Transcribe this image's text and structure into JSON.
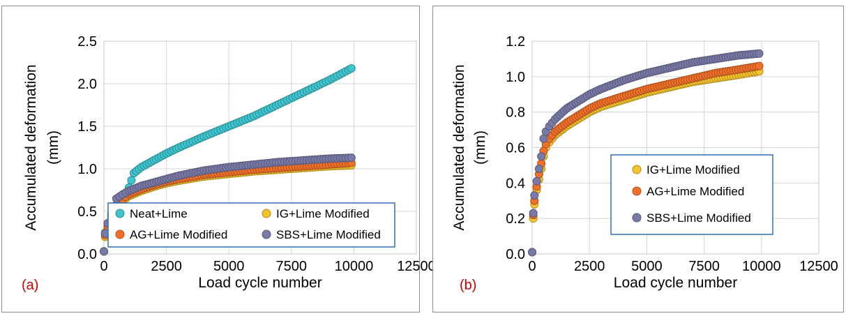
{
  "chart_data": [
    {
      "type": "scatter",
      "panel_label": "(a)",
      "xlabel": "Load cycle number",
      "ylabel_line1": "Accumulated deformation",
      "ylabel_line2": "(mm)",
      "xlim": [
        0,
        12500
      ],
      "ylim": [
        0,
        2.5
      ],
      "xticks": [
        "0",
        "2500",
        "5000",
        "7500",
        "10000",
        "12500"
      ],
      "yticks": [
        "0.0",
        "0.5",
        "1.0",
        "1.5",
        "2.0",
        "2.5"
      ],
      "grid": true,
      "legend_position": "bottom-right",
      "series": [
        {
          "name": "Neat+Lime",
          "color": "#3fc5cf",
          "points": [
            [
              0,
              0.03
            ],
            [
              50,
              0.25
            ],
            [
              150,
              0.36
            ],
            [
              300,
              0.45
            ],
            [
              500,
              0.55
            ],
            [
              750,
              0.66
            ],
            [
              1000,
              0.78
            ],
            [
              1200,
              0.95
            ],
            [
              1500,
              1.02
            ],
            [
              2000,
              1.1
            ],
            [
              2500,
              1.18
            ],
            [
              3000,
              1.25
            ],
            [
              4000,
              1.38
            ],
            [
              5000,
              1.5
            ],
            [
              6000,
              1.62
            ],
            [
              7000,
              1.76
            ],
            [
              8000,
              1.9
            ],
            [
              9000,
              2.04
            ],
            [
              9900,
              2.18
            ]
          ]
        },
        {
          "name": "IG+Lime Modified",
          "color": "#f5c42c",
          "points": [
            [
              0,
              0.03
            ],
            [
              50,
              0.2
            ],
            [
              150,
              0.3
            ],
            [
              300,
              0.4
            ],
            [
              500,
              0.53
            ],
            [
              750,
              0.62
            ],
            [
              1000,
              0.68
            ],
            [
              1500,
              0.74
            ],
            [
              2000,
              0.79
            ],
            [
              2500,
              0.83
            ],
            [
              3000,
              0.86
            ],
            [
              4000,
              0.91
            ],
            [
              5000,
              0.94
            ],
            [
              6000,
              0.97
            ],
            [
              7000,
              0.99
            ],
            [
              8000,
              1.01
            ],
            [
              9000,
              1.03
            ],
            [
              9900,
              1.04
            ]
          ]
        },
        {
          "name": "AG+Lime Modified",
          "color": "#f0702a",
          "points": [
            [
              0,
              0.03
            ],
            [
              50,
              0.22
            ],
            [
              150,
              0.32
            ],
            [
              300,
              0.42
            ],
            [
              500,
              0.56
            ],
            [
              750,
              0.64
            ],
            [
              1000,
              0.7
            ],
            [
              1500,
              0.76
            ],
            [
              2000,
              0.81
            ],
            [
              2500,
              0.85
            ],
            [
              3000,
              0.88
            ],
            [
              4000,
              0.93
            ],
            [
              5000,
              0.96
            ],
            [
              6000,
              0.99
            ],
            [
              7000,
              1.01
            ],
            [
              8000,
              1.03
            ],
            [
              9000,
              1.05
            ],
            [
              9900,
              1.07
            ]
          ]
        },
        {
          "name": "SBS+Lime Modified",
          "color": "#7a7aa8",
          "points": [
            [
              0,
              0.03
            ],
            [
              50,
              0.24
            ],
            [
              150,
              0.36
            ],
            [
              300,
              0.47
            ],
            [
              500,
              0.65
            ],
            [
              750,
              0.7
            ],
            [
              1000,
              0.74
            ],
            [
              1500,
              0.8
            ],
            [
              2000,
              0.84
            ],
            [
              2500,
              0.88
            ],
            [
              3000,
              0.92
            ],
            [
              4000,
              0.98
            ],
            [
              5000,
              1.02
            ],
            [
              6000,
              1.05
            ],
            [
              7000,
              1.08
            ],
            [
              8000,
              1.1
            ],
            [
              9000,
              1.12
            ],
            [
              9900,
              1.13
            ]
          ]
        }
      ]
    },
    {
      "type": "scatter",
      "panel_label": "(b)",
      "xlabel": "Load cycle number",
      "ylabel_line1": "Accumulated deformation",
      "ylabel_line2": "(mm)",
      "xlim": [
        0,
        12500
      ],
      "ylim": [
        0,
        1.2
      ],
      "xticks": [
        "0",
        "2500",
        "5000",
        "7500",
        "10000",
        "12500"
      ],
      "yticks": [
        "0.0",
        "0.2",
        "0.4",
        "0.6",
        "0.8",
        "1.0",
        "1.2"
      ],
      "grid": true,
      "legend_position": "center-right",
      "series": [
        {
          "name": "IG+Lime Modified",
          "color": "#f5c42c",
          "points": [
            [
              0,
              0.01
            ],
            [
              50,
              0.2
            ],
            [
              100,
              0.28
            ],
            [
              200,
              0.36
            ],
            [
              300,
              0.42
            ],
            [
              400,
              0.48
            ],
            [
              500,
              0.55
            ],
            [
              600,
              0.6
            ],
            [
              750,
              0.63
            ],
            [
              1000,
              0.67
            ],
            [
              1500,
              0.72
            ],
            [
              2000,
              0.76
            ],
            [
              2500,
              0.8
            ],
            [
              3000,
              0.83
            ],
            [
              4000,
              0.87
            ],
            [
              5000,
              0.91
            ],
            [
              6000,
              0.94
            ],
            [
              7000,
              0.97
            ],
            [
              8000,
              0.99
            ],
            [
              9000,
              1.01
            ],
            [
              9900,
              1.03
            ]
          ]
        },
        {
          "name": "AG+Lime Modified",
          "color": "#f0702a",
          "points": [
            [
              0,
              0.01
            ],
            [
              50,
              0.22
            ],
            [
              100,
              0.3
            ],
            [
              200,
              0.38
            ],
            [
              300,
              0.45
            ],
            [
              400,
              0.51
            ],
            [
              500,
              0.58
            ],
            [
              600,
              0.62
            ],
            [
              750,
              0.65
            ],
            [
              1000,
              0.69
            ],
            [
              1500,
              0.74
            ],
            [
              2000,
              0.78
            ],
            [
              2500,
              0.82
            ],
            [
              3000,
              0.85
            ],
            [
              4000,
              0.89
            ],
            [
              5000,
              0.93
            ],
            [
              6000,
              0.96
            ],
            [
              7000,
              0.99
            ],
            [
              8000,
              1.02
            ],
            [
              9000,
              1.04
            ],
            [
              9900,
              1.06
            ]
          ]
        },
        {
          "name": "SBS+Lime Modified",
          "color": "#7a7aa8",
          "points": [
            [
              0,
              0.01
            ],
            [
              50,
              0.23
            ],
            [
              100,
              0.33
            ],
            [
              200,
              0.41
            ],
            [
              300,
              0.48
            ],
            [
              400,
              0.55
            ],
            [
              500,
              0.65
            ],
            [
              600,
              0.69
            ],
            [
              750,
              0.72
            ],
            [
              1000,
              0.76
            ],
            [
              1500,
              0.82
            ],
            [
              2000,
              0.86
            ],
            [
              2500,
              0.9
            ],
            [
              3000,
              0.93
            ],
            [
              4000,
              0.98
            ],
            [
              5000,
              1.02
            ],
            [
              6000,
              1.05
            ],
            [
              7000,
              1.08
            ],
            [
              8000,
              1.1
            ],
            [
              9000,
              1.12
            ],
            [
              9900,
              1.13
            ]
          ]
        }
      ]
    }
  ]
}
